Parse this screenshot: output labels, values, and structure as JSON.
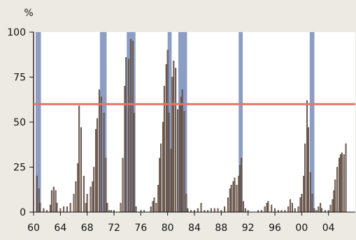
{
  "chart_data": {
    "type": "bar",
    "unit_label": "%",
    "ylim": [
      0,
      100
    ],
    "yticks": [
      0,
      25,
      50,
      75,
      100
    ],
    "xlim": [
      1960,
      2008
    ],
    "xticks": [
      {
        "value": 1960,
        "label": "60"
      },
      {
        "value": 1964,
        "label": "64"
      },
      {
        "value": 1968,
        "label": "68"
      },
      {
        "value": 1972,
        "label": "72"
      },
      {
        "value": 1976,
        "label": "76"
      },
      {
        "value": 1980,
        "label": "80"
      },
      {
        "value": 1984,
        "label": "84"
      },
      {
        "value": 1988,
        "label": "88"
      },
      {
        "value": 1992,
        "label": "92"
      },
      {
        "value": 1996,
        "label": "96"
      },
      {
        "value": 2000,
        "label": "00"
      },
      {
        "value": 2004,
        "label": "04"
      }
    ],
    "threshold": {
      "value": 60,
      "color": "#e8726a"
    },
    "shaded_periods": [
      {
        "start": 1960.3,
        "end": 1961.1
      },
      {
        "start": 1969.9,
        "end": 1970.9
      },
      {
        "start": 1973.9,
        "end": 1975.2
      },
      {
        "start": 1980.0,
        "end": 1980.6
      },
      {
        "start": 1981.6,
        "end": 1982.9
      },
      {
        "start": 1990.6,
        "end": 1991.2
      },
      {
        "start": 2001.2,
        "end": 2001.9
      }
    ],
    "bar_color": "#8a7062",
    "shade_color": "#8c9ec4",
    "bars": [
      [
        1960.0,
        100
      ],
      [
        1960.5,
        20
      ],
      [
        1960.8,
        13
      ],
      [
        1961.0,
        5
      ],
      [
        1961.5,
        2
      ],
      [
        1962.0,
        1
      ],
      [
        1962.5,
        4
      ],
      [
        1962.7,
        12
      ],
      [
        1963.0,
        14
      ],
      [
        1963.3,
        12
      ],
      [
        1963.5,
        5
      ],
      [
        1964.0,
        2
      ],
      [
        1964.5,
        3
      ],
      [
        1965.0,
        3
      ],
      [
        1965.5,
        5
      ],
      [
        1966.0,
        10
      ],
      [
        1966.3,
        17
      ],
      [
        1966.6,
        27
      ],
      [
        1966.8,
        59
      ],
      [
        1967.1,
        47
      ],
      [
        1967.5,
        20
      ],
      [
        1967.8,
        5
      ],
      [
        1968.0,
        10
      ],
      [
        1968.5,
        14
      ],
      [
        1968.8,
        17
      ],
      [
        1969.0,
        25
      ],
      [
        1969.3,
        46
      ],
      [
        1969.5,
        52
      ],
      [
        1969.8,
        68
      ],
      [
        1970.1,
        64
      ],
      [
        1970.5,
        55
      ],
      [
        1970.8,
        30
      ],
      [
        1971.0,
        5
      ],
      [
        1971.3,
        1
      ],
      [
        1971.6,
        1
      ],
      [
        1972.0,
        1
      ],
      [
        1972.5,
        0
      ],
      [
        1973.0,
        5
      ],
      [
        1973.3,
        30
      ],
      [
        1973.6,
        70
      ],
      [
        1973.8,
        86
      ],
      [
        1974.2,
        85
      ],
      [
        1974.5,
        96
      ],
      [
        1974.8,
        95
      ],
      [
        1975.0,
        55
      ],
      [
        1975.3,
        3
      ],
      [
        1976.0,
        1
      ],
      [
        1976.5,
        1
      ],
      [
        1977.0,
        0
      ],
      [
        1977.5,
        3
      ],
      [
        1977.8,
        6
      ],
      [
        1978.0,
        8
      ],
      [
        1978.3,
        5
      ],
      [
        1978.6,
        15
      ],
      [
        1978.8,
        30
      ],
      [
        1979.0,
        38
      ],
      [
        1979.3,
        50
      ],
      [
        1979.5,
        70
      ],
      [
        1979.8,
        82
      ],
      [
        1980.0,
        90
      ],
      [
        1980.2,
        55
      ],
      [
        1980.5,
        35
      ],
      [
        1980.7,
        75
      ],
      [
        1980.9,
        84
      ],
      [
        1981.2,
        80
      ],
      [
        1981.5,
        57
      ],
      [
        1981.8,
        59
      ],
      [
        1982.0,
        64
      ],
      [
        1982.2,
        68
      ],
      [
        1982.5,
        56
      ],
      [
        1982.8,
        10
      ],
      [
        1983.0,
        2
      ],
      [
        1983.5,
        1
      ],
      [
        1984.0,
        1
      ],
      [
        1984.5,
        2
      ],
      [
        1985.0,
        5
      ],
      [
        1985.5,
        1
      ],
      [
        1986.0,
        1
      ],
      [
        1986.5,
        2
      ],
      [
        1987.0,
        2
      ],
      [
        1987.5,
        2
      ],
      [
        1988.0,
        1
      ],
      [
        1988.5,
        3
      ],
      [
        1989.0,
        8
      ],
      [
        1989.3,
        13
      ],
      [
        1989.5,
        15
      ],
      [
        1989.8,
        17
      ],
      [
        1990.0,
        19
      ],
      [
        1990.3,
        15
      ],
      [
        1990.6,
        20
      ],
      [
        1990.8,
        26
      ],
      [
        1991.0,
        30
      ],
      [
        1991.3,
        6
      ],
      [
        1991.6,
        2
      ],
      [
        1992.0,
        1
      ],
      [
        1992.5,
        0
      ],
      [
        1993.0,
        0
      ],
      [
        1993.5,
        1
      ],
      [
        1994.0,
        1
      ],
      [
        1994.5,
        3
      ],
      [
        1994.8,
        5
      ],
      [
        1995.0,
        6
      ],
      [
        1995.5,
        4
      ],
      [
        1996.0,
        2
      ],
      [
        1996.5,
        1
      ],
      [
        1997.0,
        1
      ],
      [
        1997.5,
        1
      ],
      [
        1998.0,
        3
      ],
      [
        1998.3,
        7
      ],
      [
        1998.6,
        5
      ],
      [
        1999.0,
        2
      ],
      [
        1999.5,
        3
      ],
      [
        1999.8,
        8
      ],
      [
        2000.0,
        10
      ],
      [
        2000.3,
        20
      ],
      [
        2000.5,
        38
      ],
      [
        2000.8,
        62
      ],
      [
        2001.0,
        47
      ],
      [
        2001.3,
        22
      ],
      [
        2001.6,
        10
      ],
      [
        2001.9,
        2
      ],
      [
        2002.2,
        1
      ],
      [
        2002.5,
        3
      ],
      [
        2002.8,
        5
      ],
      [
        2003.0,
        2
      ],
      [
        2003.5,
        1
      ],
      [
        2004.0,
        1
      ],
      [
        2004.3,
        4
      ],
      [
        2004.6,
        7
      ],
      [
        2004.8,
        12
      ],
      [
        2005.0,
        18
      ],
      [
        2005.3,
        25
      ],
      [
        2005.6,
        30
      ],
      [
        2005.8,
        32
      ],
      [
        2006.0,
        33
      ],
      [
        2006.3,
        32
      ],
      [
        2006.6,
        38
      ]
    ]
  }
}
